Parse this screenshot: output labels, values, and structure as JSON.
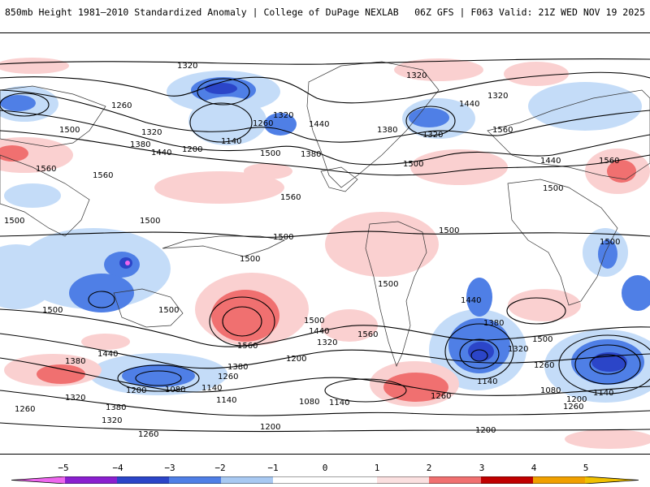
{
  "header": {
    "title": "850mb Height 1981–2010 Standardized Anomaly | College of DuPage NEXLAB",
    "run_info": "06Z GFS | F063 Valid: 21Z WED NOV 19 2025"
  },
  "map": {
    "contour_labels": [
      "1320",
      "1380",
      "1440",
      "1500",
      "1560",
      "1260",
      "1200",
      "1140",
      "1080"
    ],
    "anomaly_colors": {
      "neg5": "#ee66ee",
      "neg4": "#8a1fcf",
      "neg3": "#2b45c8",
      "neg2": "#4f7fe6",
      "neg1": "#c4dcf8",
      "zero": "#ffffff",
      "pos1": "#fad0d0",
      "pos2": "#f07070",
      "pos3": "#e03030",
      "pos4": "#b00000",
      "pos5": "#f0a000"
    }
  },
  "colorbar": {
    "ticks": [
      "−5",
      "−4",
      "−3",
      "−2",
      "−1",
      "0",
      "1",
      "2",
      "3",
      "4",
      "5"
    ],
    "colors": [
      "#ee66ee",
      "#8a1fcf",
      "#2b45c8",
      "#4f7fe6",
      "#a8c9f2",
      "#d8e8fa",
      "#fbe0e0",
      "#f7a8a8",
      "#f07070",
      "#c00000",
      "#f0a000"
    ]
  }
}
